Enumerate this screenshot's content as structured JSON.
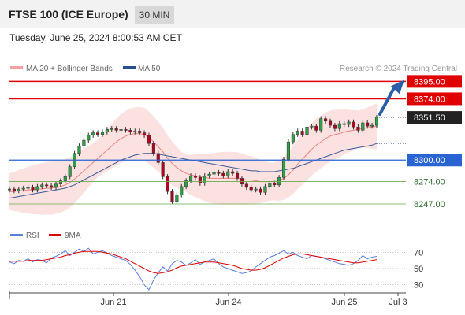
{
  "header": {
    "title": "FTSE 100 (ICE Europe)",
    "timeframe": "30 MIN"
  },
  "datetime": "Tuesday, June 25, 2024 8:00:53 AM CET",
  "legend": {
    "ma20": "MA 20 + Bollinger Bands",
    "ma50": "MA 50",
    "credit": "Research © 2024 Trading Central"
  },
  "rsi_legend": {
    "rsi": "RSI",
    "ma9": "9MA"
  },
  "colors": {
    "red": "#e00000",
    "blue": "#2a64d2",
    "green": "#6aa84f",
    "band": "#fbd9d9",
    "candle_up": "#2f9e44",
    "candle_down": "#b00020",
    "rsi": "#5b7fdb",
    "rsi_ma": "#e00000",
    "arrow": "#2b5ea8"
  },
  "chart_data": [
    {
      "type": "candlestick",
      "x_ticks": [
        "Jun 21",
        "Jun 24",
        "Jun 25",
        "Jul 3"
      ],
      "ylim": [
        8227,
        8402
      ],
      "levels": [
        {
          "label": "8395.00",
          "value": 8395,
          "kind": "resistance"
        },
        {
          "label": "8374.00",
          "value": 8374,
          "kind": "resistance"
        },
        {
          "label": "8351.50",
          "value": 8351.5,
          "kind": "last"
        },
        {
          "label": "8300.00",
          "value": 8300,
          "kind": "pivot"
        },
        {
          "label": "8274.00",
          "value": 8274,
          "kind": "support"
        },
        {
          "label": "8247.00",
          "value": 8247,
          "kind": "support"
        }
      ],
      "close_series": [
        8265,
        8263,
        8265,
        8266,
        8267,
        8264,
        8268,
        8270,
        8269,
        8267,
        8271,
        8275,
        8280,
        8292,
        8308,
        8317,
        8324,
        8330,
        8333,
        8331,
        8334,
        8337,
        8338,
        8336,
        8337,
        8336,
        8334,
        8335,
        8333,
        8330,
        8320,
        8308,
        8297,
        8280,
        8262,
        8250,
        8258,
        8268,
        8275,
        8281,
        8279,
        8272,
        8281,
        8283,
        8285,
        8284,
        8281,
        8286,
        8284,
        8278,
        8271,
        8267,
        8264,
        8265,
        8261,
        8268,
        8272,
        8270,
        8279,
        8301,
        8322,
        8331,
        8335,
        8331,
        8340,
        8341,
        8336,
        8350,
        8347,
        8342,
        8338,
        8344,
        8343,
        8346,
        8340,
        8336,
        8345,
        8341,
        8342,
        8351.5
      ],
      "ma20": [
        8262,
        8262,
        8263,
        8263,
        8264,
        8264,
        8265,
        8265,
        8266,
        8266,
        8267,
        8268,
        8270,
        8273,
        8277,
        8282,
        8287,
        8292,
        8297,
        8302,
        8307,
        8312,
        8317,
        8322,
        8326,
        8329,
        8331,
        8332,
        8332,
        8331,
        8327,
        8322,
        8316,
        8310,
        8302,
        8296,
        8291,
        8287,
        8284,
        8282,
        8281,
        8280,
        8279,
        8278,
        8278,
        8278,
        8278,
        8278,
        8278,
        8278,
        8277,
        8276,
        8276,
        8275,
        8274,
        8274,
        8274,
        8274,
        8275,
        8278,
        8282,
        8288,
        8295,
        8301,
        8307,
        8313,
        8318,
        8322,
        8326,
        8329,
        8331,
        8332,
        8334,
        8335,
        8336,
        8337,
        8338,
        8339,
        8340,
        8341
      ],
      "ma50": [
        8254,
        8255,
        8256,
        8257,
        8258,
        8259,
        8260,
        8261,
        8262,
        8263,
        8264,
        8265,
        8266,
        8268,
        8270,
        8273,
        8276,
        8279,
        8282,
        8285,
        8288,
        8291,
        8294,
        8297,
        8300,
        8302,
        8304,
        8306,
        8307,
        8308,
        8308,
        8308,
        8307,
        8306,
        8305,
        8304,
        8303,
        8302,
        8301,
        8300,
        8299,
        8298,
        8297,
        8296,
        8295,
        8294,
        8293,
        8292,
        8291,
        8290,
        8289,
        8288,
        8287,
        8287,
        8286,
        8286,
        8286,
        8286,
        8287,
        8288,
        8289,
        8290,
        8292,
        8294,
        8296,
        8298,
        8300,
        8302,
        8304,
        8306,
        8308,
        8310,
        8312,
        8313,
        8314,
        8315,
        8316,
        8317,
        8318,
        8320
      ]
    },
    {
      "type": "line",
      "name_rsi": "RSI",
      "name_ma": "9MA",
      "ylim": [
        20,
        80
      ],
      "y_ticks": [
        70,
        50,
        30
      ],
      "rsi": [
        58,
        56,
        60,
        59,
        62,
        58,
        61,
        60,
        57,
        63,
        65,
        68,
        72,
        66,
        70,
        74,
        71,
        75,
        68,
        70,
        72,
        69,
        66,
        64,
        62,
        60,
        55,
        48,
        40,
        30,
        24,
        36,
        45,
        52,
        47,
        56,
        60,
        58,
        54,
        57,
        61,
        55,
        58,
        60,
        62,
        56,
        52,
        50,
        48,
        46,
        44,
        45,
        47,
        52,
        56,
        60,
        64,
        66,
        69,
        72,
        68,
        70,
        66,
        64,
        62,
        66,
        65,
        64,
        62,
        60,
        58,
        56,
        55,
        54,
        56,
        60,
        66,
        62,
        64,
        65
      ],
      "ma9": [
        59,
        59,
        59,
        59,
        60,
        60,
        60,
        60,
        61,
        62,
        63,
        64,
        66,
        67,
        69,
        70,
        71,
        71,
        71,
        71,
        70,
        69,
        68,
        66,
        64,
        62,
        59,
        56,
        53,
        50,
        47,
        45,
        44,
        45,
        46,
        48,
        51,
        53,
        54,
        55,
        56,
        57,
        58,
        58,
        58,
        57,
        56,
        55,
        54,
        52,
        50,
        49,
        48,
        48,
        49,
        51,
        54,
        57,
        60,
        63,
        65,
        67,
        68,
        68,
        67,
        66,
        65,
        64,
        63,
        62,
        61,
        60,
        59,
        58,
        57,
        57,
        58,
        59,
        60,
        61
      ]
    }
  ]
}
